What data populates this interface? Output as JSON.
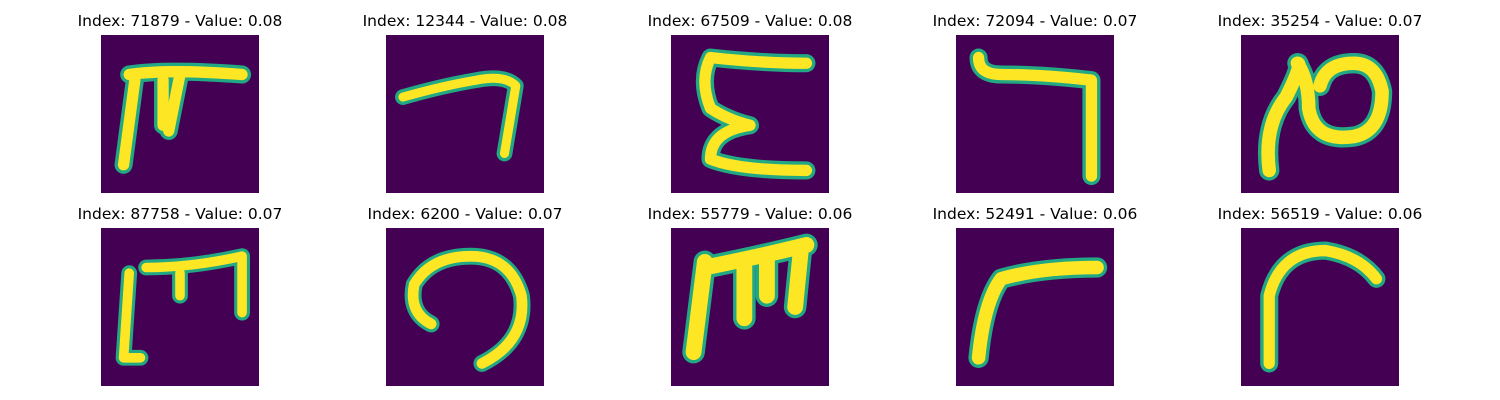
{
  "colors": {
    "background": "#440154",
    "stroke": "#fde725",
    "edge": "#23a884"
  },
  "panels": [
    {
      "title": "Index: 71879 - Value: 0.08"
    },
    {
      "title": "Index: 12344 - Value: 0.08"
    },
    {
      "title": "Index: 67509 - Value: 0.08"
    },
    {
      "title": "Index: 72094 - Value: 0.07"
    },
    {
      "title": "Index: 35254 - Value: 0.07"
    },
    {
      "title": "Index: 87758 - Value: 0.07"
    },
    {
      "title": "Index: 6200 - Value: 0.07"
    },
    {
      "title": "Index: 55779 - Value: 0.06"
    },
    {
      "title": "Index: 52491 - Value: 0.06"
    },
    {
      "title": "Index: 56519 - Value: 0.06"
    }
  ]
}
